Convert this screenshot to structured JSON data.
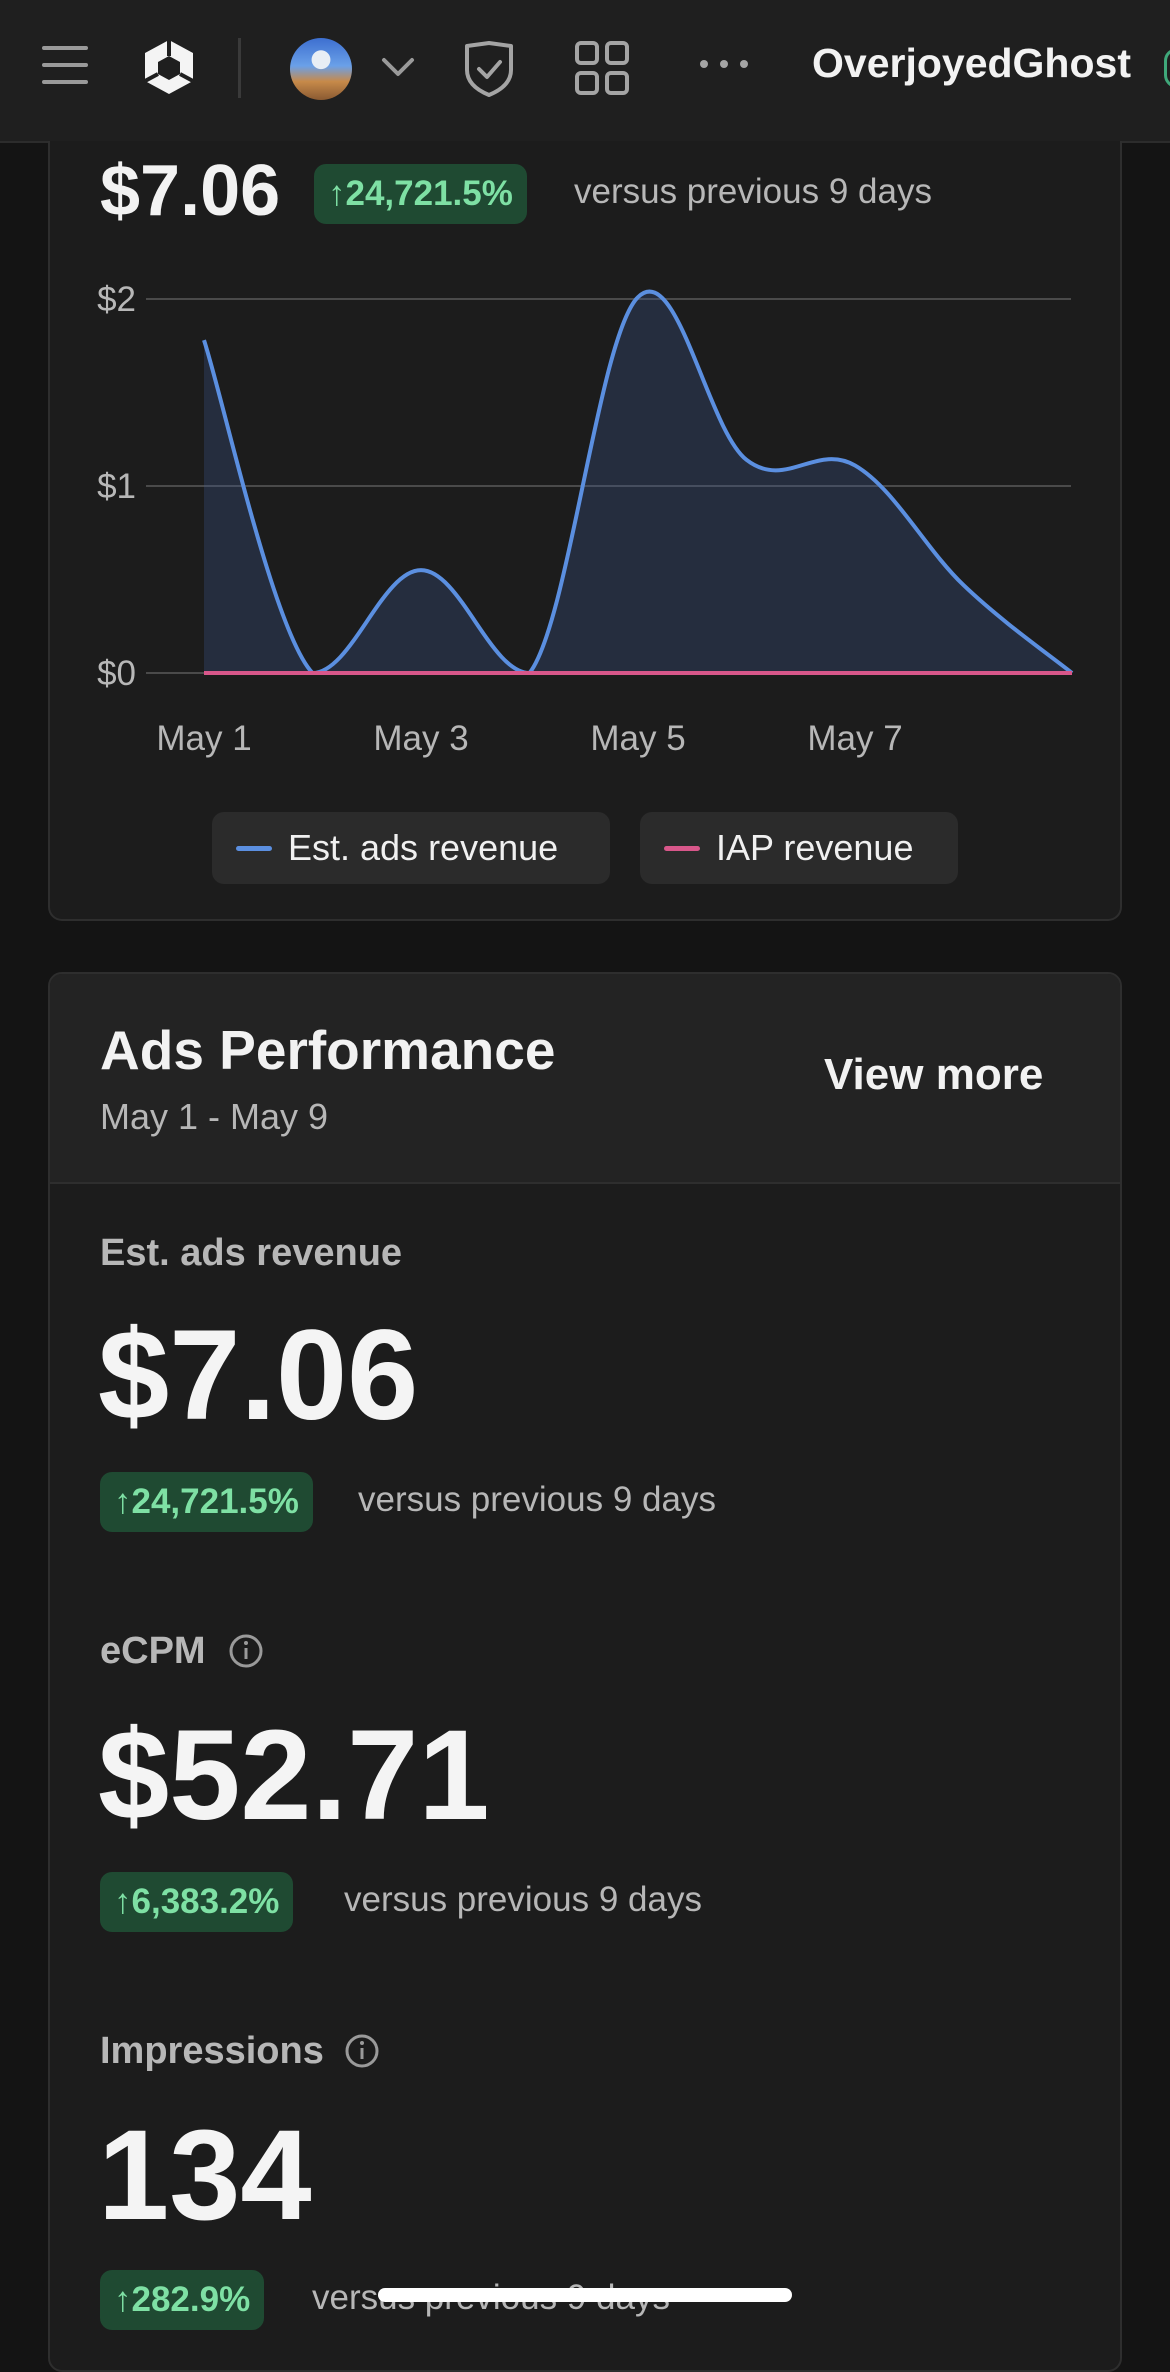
{
  "topbar": {
    "username": "OverjoyedGhost",
    "icons": [
      "menu-icon",
      "unity-logo-icon",
      "project-avatar",
      "chevron-down-icon",
      "shield-check-icon",
      "grid-icon",
      "more-dots-icon"
    ]
  },
  "summary": {
    "total": "$7.06",
    "change": "24,721.5%",
    "versus": "versus previous 9 days"
  },
  "chart_data": {
    "type": "area",
    "x": [
      "May 1",
      "May 2",
      "May 3",
      "May 4",
      "May 5",
      "May 6",
      "May 7",
      "May 8",
      "May 9"
    ],
    "x_tick_labels": [
      "May 1",
      "May 3",
      "May 5",
      "May 7"
    ],
    "y_tick_labels": [
      "$0",
      "$1",
      "$2"
    ],
    "ylim": [
      0,
      2
    ],
    "grid": true,
    "legend_position": "bottom-center",
    "series": [
      {
        "name": "Est. ads revenue",
        "color": "#5b8fe0",
        "values": [
          1.78,
          0.0,
          0.55,
          0.0,
          2.01,
          1.14,
          1.11,
          0.47,
          0.0
        ]
      },
      {
        "name": "IAP revenue",
        "color": "#d8578a",
        "values": [
          0,
          0,
          0,
          0,
          0,
          0,
          0,
          0,
          0
        ]
      }
    ]
  },
  "ads_performance": {
    "title": "Ads Performance",
    "range": "May 1 - May 9",
    "view_more": "View more",
    "metrics": [
      {
        "label": "Est. ads revenue",
        "value": "$7.06",
        "change": "24,721.5%",
        "versus": "versus previous 9 days",
        "info": false
      },
      {
        "label": "eCPM",
        "value": "$52.71",
        "change": "6,383.2%",
        "versus": "versus previous 9 days",
        "info": true
      },
      {
        "label": "Impressions",
        "value": "134",
        "change": "282.9%",
        "versus": "versus previous 9 days",
        "info": true
      }
    ]
  },
  "colors": {
    "badge_bg": "#1f4a32",
    "badge_text": "#7ee0a4",
    "ads_line": "#5b8fe0",
    "iap_line": "#d8578a"
  }
}
